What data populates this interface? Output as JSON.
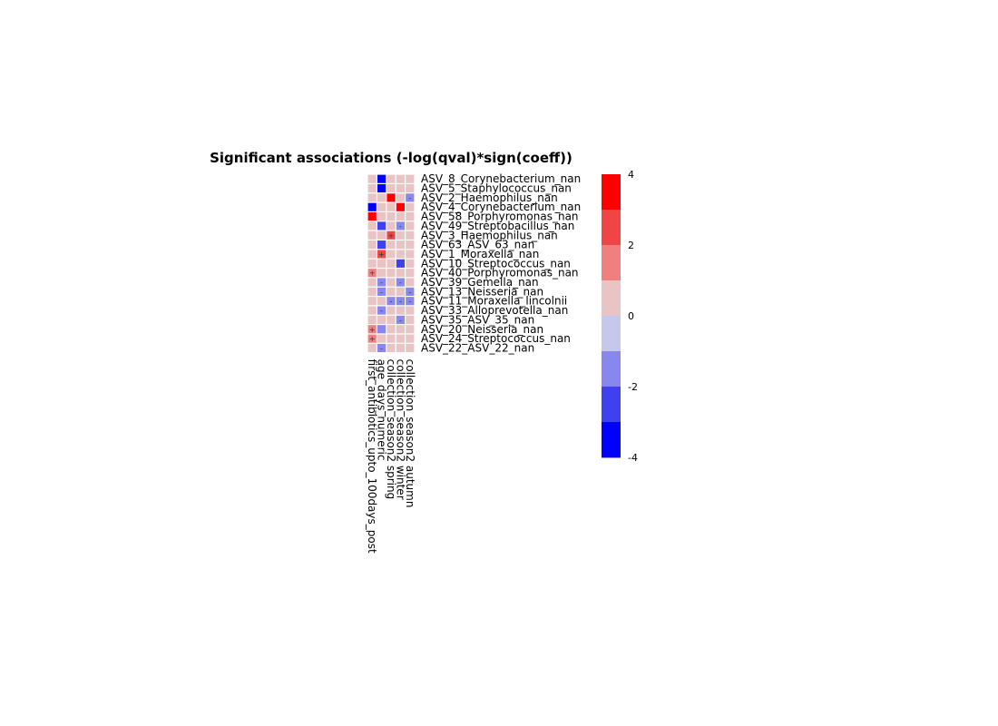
{
  "chart_data": {
    "type": "heatmap",
    "title": "Significant associations (-log(qval)*sign(coeff))",
    "rows": [
      "ASV_8_Corynebacterium_nan",
      "ASV_5_Staphylococcus_nan",
      "ASV_2_Haemophilus_nan",
      "ASV_4_Corynebacterium_nan",
      "ASV_58_Porphyromonas_nan",
      "ASV_49_Streptobacillus_nan",
      "ASV_3_Haemophilus_nan",
      "ASV_63_ASV_63_nan",
      "ASV_1_Moraxella_nan",
      "ASV_10_Streptococcus_nan",
      "ASV_40_Porphyromonas_nan",
      "ASV_39_Gemella_nan",
      "ASV_13_Neisseria_nan",
      "ASV_11_Moraxella_lincolnii",
      "ASV_33_Alloprevotella_nan",
      "ASV_35_ASV_35_nan",
      "ASV_20_Neisseria_nan",
      "ASV_24_Streptococcus_nan",
      "ASV_22_ASV_22_nan"
    ],
    "columns": [
      "first_antibiotics_upto_100days_post",
      "age_days_numeric",
      "collection_season2 spring",
      "collection_season2 winter",
      "collection_season2 autumn"
    ],
    "values": [
      [
        0,
        -4.2,
        0,
        0,
        0
      ],
      [
        0,
        -4.2,
        0,
        0,
        0
      ],
      [
        0,
        0,
        3.8,
        0,
        -1.5
      ],
      [
        -4.0,
        0,
        0,
        3.8,
        0
      ],
      [
        3.8,
        0,
        0,
        0,
        0
      ],
      [
        0,
        -3.0,
        0,
        -1.4,
        0
      ],
      [
        0,
        0,
        2.6,
        0,
        0
      ],
      [
        0,
        -3.0,
        0,
        0,
        0
      ],
      [
        0,
        2.6,
        0,
        0,
        0
      ],
      [
        0,
        0,
        0,
        -3.0,
        0
      ],
      [
        1.4,
        0,
        0,
        0,
        0
      ],
      [
        0,
        -1.4,
        0,
        -1.4,
        0
      ],
      [
        0,
        -1.4,
        0,
        0,
        -1.5
      ],
      [
        0,
        0,
        -1.5,
        -1.5,
        -1.5
      ],
      [
        0,
        -1.4,
        0,
        0,
        0
      ],
      [
        0,
        0,
        0,
        -1.4,
        0
      ],
      [
        1.4,
        -1.8,
        0,
        0,
        0
      ],
      [
        1.4,
        0,
        0,
        0,
        0
      ],
      [
        0,
        -1.4,
        0,
        0,
        0
      ]
    ],
    "signs": [
      [
        "",
        "",
        "",
        "",
        ""
      ],
      [
        "",
        "",
        "",
        "",
        ""
      ],
      [
        "",
        "",
        "",
        "",
        "-"
      ],
      [
        "",
        "",
        "",
        "",
        ""
      ],
      [
        "",
        "",
        "",
        "",
        ""
      ],
      [
        "",
        "",
        "",
        "-",
        ""
      ],
      [
        "",
        "",
        "+",
        "",
        ""
      ],
      [
        "",
        "",
        "",
        "",
        ""
      ],
      [
        "",
        "+",
        "",
        "",
        ""
      ],
      [
        "",
        "",
        "",
        "",
        ""
      ],
      [
        "+",
        "",
        "",
        "",
        ""
      ],
      [
        "",
        "-",
        "",
        "-",
        ""
      ],
      [
        "",
        "-",
        "",
        "",
        "-"
      ],
      [
        "",
        "",
        "-",
        "-",
        "-"
      ],
      [
        "",
        "-",
        "",
        "",
        ""
      ],
      [
        "",
        "",
        "",
        "-",
        ""
      ],
      [
        "+",
        "",
        "",
        "",
        ""
      ],
      [
        "+",
        "",
        "",
        "",
        ""
      ],
      [
        "",
        "-",
        "",
        "",
        ""
      ]
    ],
    "colorbar": {
      "min": -4,
      "max": 4,
      "ticks": [
        4,
        2,
        0,
        -2,
        -4
      ],
      "tick_labels": [
        "4",
        "2",
        "0",
        "-2",
        "-4"
      ],
      "colors": [
        "#0000ff",
        "#4040ee",
        "#8787ee",
        "#c5c8ea",
        "#e8c4c4",
        "#f08080",
        "#f04545",
        "#ff0000"
      ]
    },
    "grid": false
  }
}
